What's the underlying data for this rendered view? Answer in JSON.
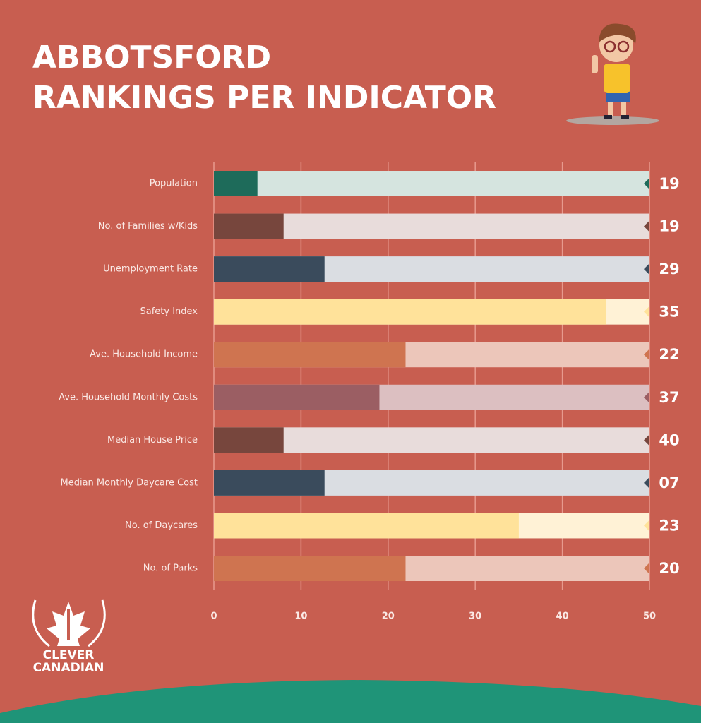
{
  "chart_data": {
    "type": "bar",
    "orientation": "horizontal",
    "title": [
      "ABBOTSFORD",
      "RANKINGS PER INDICATOR"
    ],
    "categories": [
      "Population",
      "No. of Families w/Kids",
      "Unemployment Rate",
      "Safety Index",
      "Ave. Household Income",
      "Ave. Household Monthly Costs",
      "Median House Price",
      "Median Monthly Daycare Cost",
      "No. of Daycares",
      "No. of Parks"
    ],
    "values": [
      5,
      8,
      12.7,
      45,
      22,
      19,
      8,
      12.7,
      35,
      22
    ],
    "rankings": [
      "19",
      "19",
      "29",
      "35",
      "22",
      "37",
      "40",
      "07",
      "23",
      "20"
    ],
    "colors": [
      "#1e6b5a",
      "#77463d",
      "#3a4b5c",
      "#ffe29a",
      "#cf7450",
      "#9b5e63",
      "#77463d",
      "#3a4b5c",
      "#ffe29a",
      "#cf7450"
    ],
    "track_colors": [
      "#d5e4df",
      "#e8dcdb",
      "#dadde2",
      "#fff2d6",
      "#ecc6ba",
      "#dcbfc1",
      "#e8dcdb",
      "#dadde2",
      "#fff2d6",
      "#ecc6ba"
    ],
    "xlim": [
      0,
      50
    ],
    "xticks": [
      0,
      10,
      20,
      30,
      40,
      50
    ],
    "grid": true
  },
  "logo": [
    "CLEVER",
    "CANADIAN"
  ]
}
